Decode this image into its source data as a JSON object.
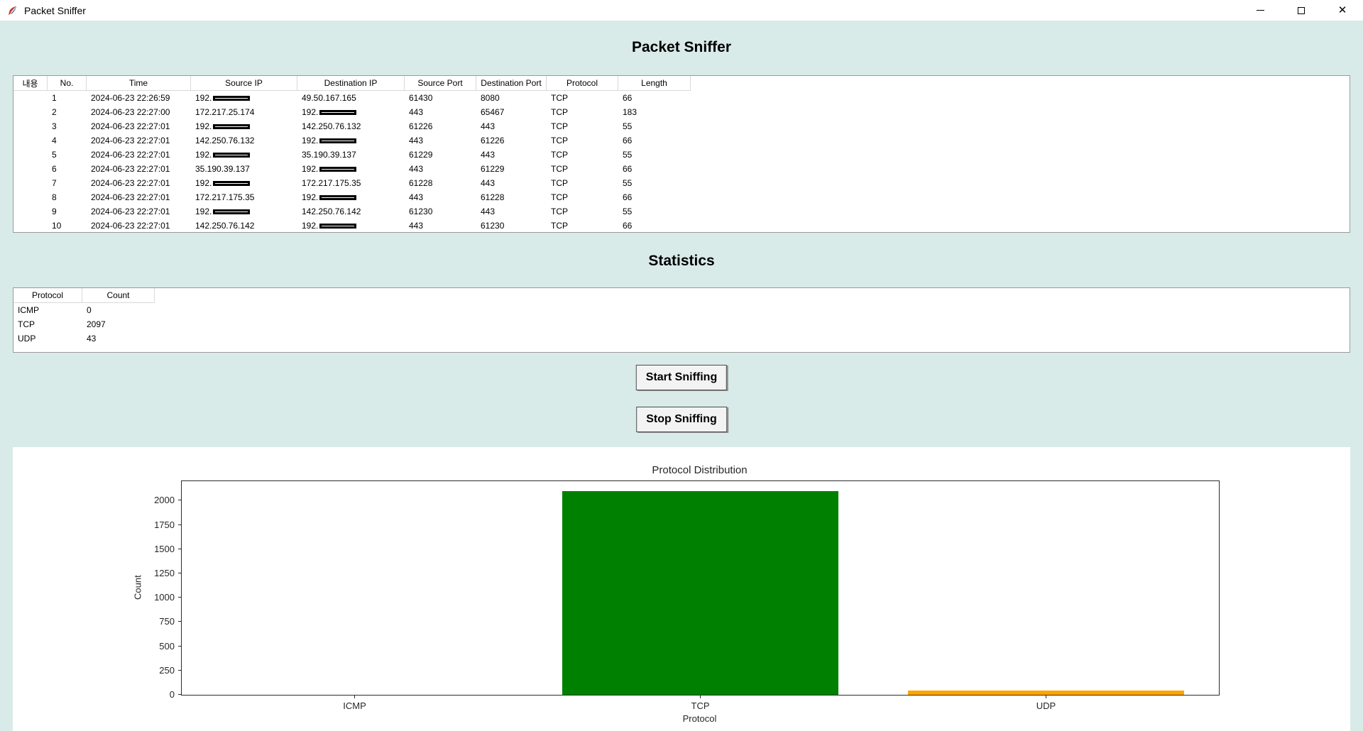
{
  "window": {
    "title": "Packet Sniffer",
    "icon": "tk-feather-icon",
    "controls": {
      "close_glyph": "✕"
    }
  },
  "headings": {
    "main": "Packet Sniffer",
    "statistics": "Statistics"
  },
  "packet_table": {
    "columns": [
      "내용",
      "No.",
      "Time",
      "Source IP",
      "Destination IP",
      "Source Port",
      "Destination Port",
      "Protocol",
      "Length"
    ],
    "rows": [
      {
        "no": "1",
        "time": "2024-06-23 22:26:59",
        "src": {
          "text": "192.",
          "redacted": true
        },
        "dst": {
          "text": "49.50.167.165",
          "redacted": false
        },
        "src_port": "61430",
        "dst_port": "8080",
        "protocol": "TCP",
        "length": "66"
      },
      {
        "no": "2",
        "time": "2024-06-23 22:27:00",
        "src": {
          "text": "172.217.25.174",
          "redacted": false
        },
        "dst": {
          "text": "192.",
          "redacted": true
        },
        "src_port": "443",
        "dst_port": "65467",
        "protocol": "TCP",
        "length": "183"
      },
      {
        "no": "3",
        "time": "2024-06-23 22:27:01",
        "src": {
          "text": "192.",
          "redacted": true
        },
        "dst": {
          "text": "142.250.76.132",
          "redacted": false
        },
        "src_port": "61226",
        "dst_port": "443",
        "protocol": "TCP",
        "length": "55"
      },
      {
        "no": "4",
        "time": "2024-06-23 22:27:01",
        "src": {
          "text": "142.250.76.132",
          "redacted": false
        },
        "dst": {
          "text": "192.",
          "redacted": true
        },
        "src_port": "443",
        "dst_port": "61226",
        "protocol": "TCP",
        "length": "66"
      },
      {
        "no": "5",
        "time": "2024-06-23 22:27:01",
        "src": {
          "text": "192.",
          "redacted": true
        },
        "dst": {
          "text": "35.190.39.137",
          "redacted": false
        },
        "src_port": "61229",
        "dst_port": "443",
        "protocol": "TCP",
        "length": "55"
      },
      {
        "no": "6",
        "time": "2024-06-23 22:27:01",
        "src": {
          "text": "35.190.39.137",
          "redacted": false
        },
        "dst": {
          "text": "192.",
          "redacted": true
        },
        "src_port": "443",
        "dst_port": "61229",
        "protocol": "TCP",
        "length": "66"
      },
      {
        "no": "7",
        "time": "2024-06-23 22:27:01",
        "src": {
          "text": "192.",
          "redacted": true
        },
        "dst": {
          "text": "172.217.175.35",
          "redacted": false
        },
        "src_port": "61228",
        "dst_port": "443",
        "protocol": "TCP",
        "length": "55"
      },
      {
        "no": "8",
        "time": "2024-06-23 22:27:01",
        "src": {
          "text": "172.217.175.35",
          "redacted": false
        },
        "dst": {
          "text": "192.",
          "redacted": true
        },
        "src_port": "443",
        "dst_port": "61228",
        "protocol": "TCP",
        "length": "66"
      },
      {
        "no": "9",
        "time": "2024-06-23 22:27:01",
        "src": {
          "text": "192.",
          "redacted": true
        },
        "dst": {
          "text": "142.250.76.142",
          "redacted": false
        },
        "src_port": "61230",
        "dst_port": "443",
        "protocol": "TCP",
        "length": "55"
      },
      {
        "no": "10",
        "time": "2024-06-23 22:27:01",
        "src": {
          "text": "142.250.76.142",
          "redacted": false
        },
        "dst": {
          "text": "192.",
          "redacted": true
        },
        "src_port": "443",
        "dst_port": "61230",
        "protocol": "TCP",
        "length": "66"
      }
    ]
  },
  "stats_table": {
    "columns": [
      "Protocol",
      "Count"
    ],
    "rows": [
      {
        "protocol": "ICMP",
        "count": "0"
      },
      {
        "protocol": "TCP",
        "count": "2097"
      },
      {
        "protocol": "UDP",
        "count": "43"
      }
    ]
  },
  "buttons": {
    "start": "Start Sniffing",
    "stop": "Stop Sniffing"
  },
  "chart_data": {
    "type": "bar",
    "title": "Protocol Distribution",
    "categories": [
      "ICMP",
      "TCP",
      "UDP"
    ],
    "values": [
      0,
      2097,
      43
    ],
    "bar_colors": [
      "#1f77b4",
      "#008000",
      "#ffa500"
    ],
    "xlabel": "Protocol",
    "ylabel": "Count",
    "ylim": [
      0,
      2200
    ],
    "yticks": [
      0,
      250,
      500,
      750,
      1000,
      1250,
      1500,
      1750,
      2000
    ],
    "grid": false,
    "legend": false
  },
  "colors": {
    "background": "#d9ebe8",
    "panel": "#ffffff",
    "tcp_bar": "#008000",
    "udp_bar": "#ffa500"
  }
}
